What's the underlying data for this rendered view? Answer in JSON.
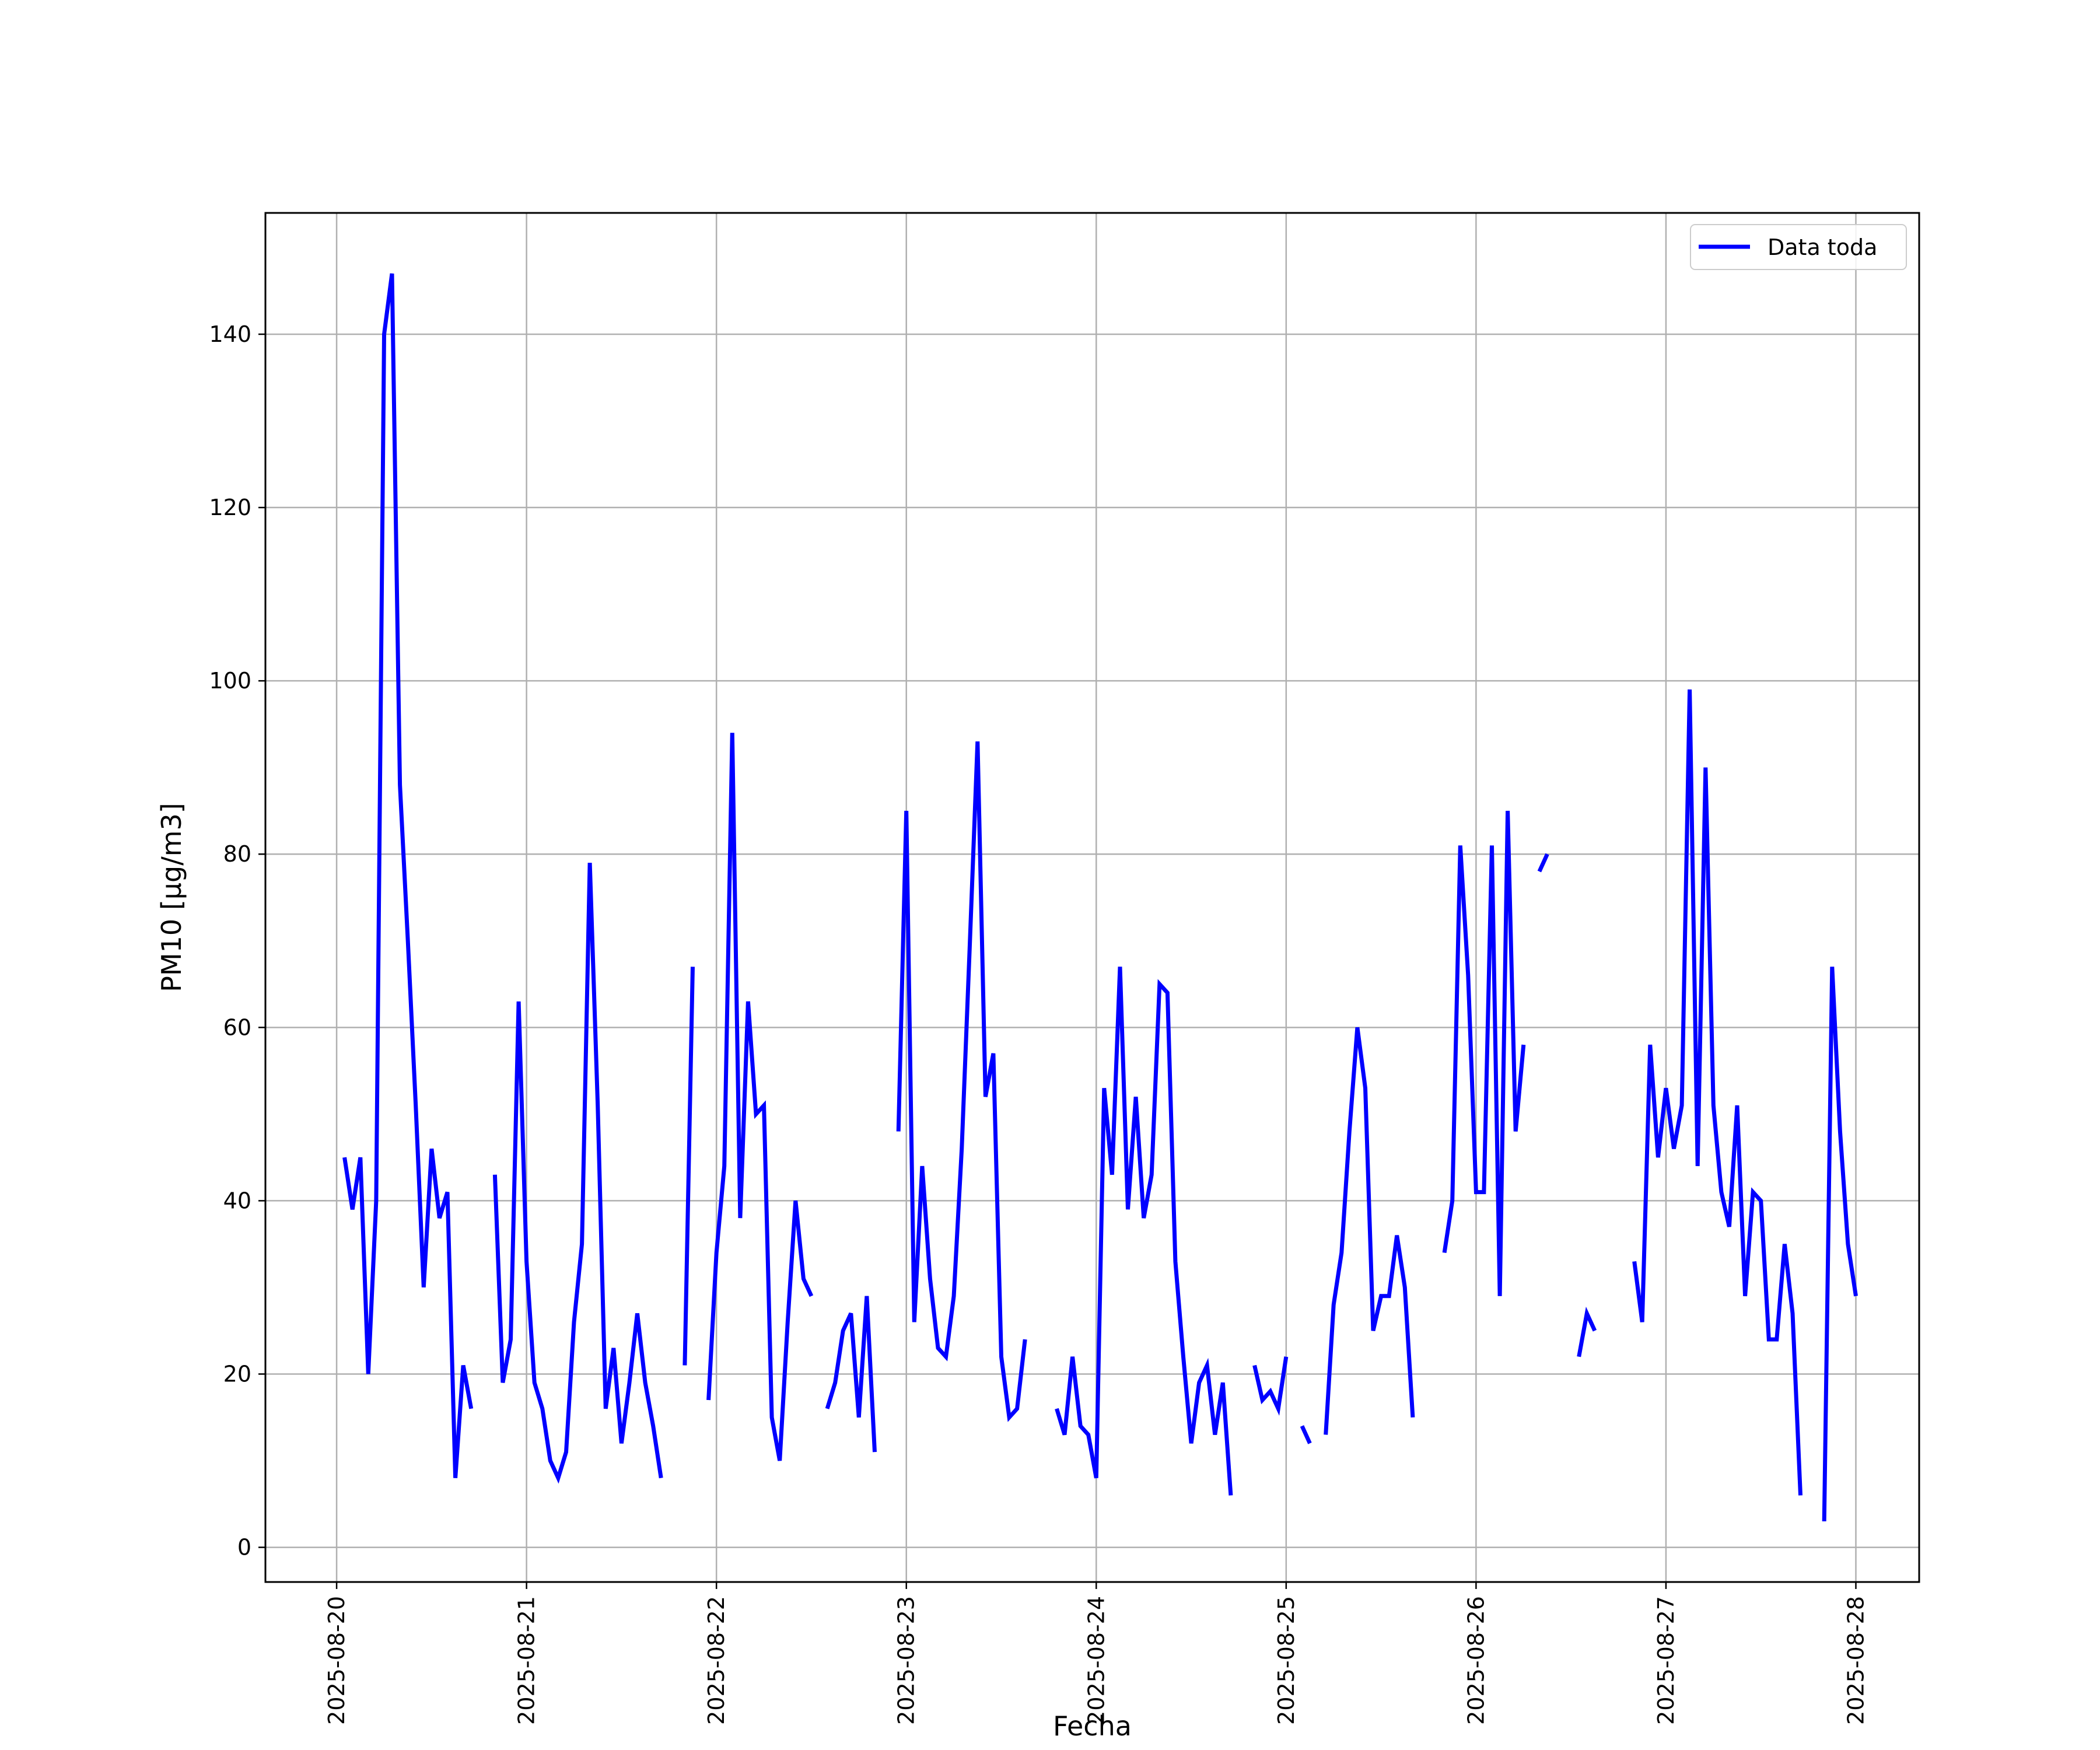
{
  "chart_data": {
    "type": "line",
    "xlabel": "Fecha",
    "ylabel": "PM10 [μg/m3]",
    "xlim": [
      "2025-08-19T15:00",
      "2025-08-28T08:00"
    ],
    "ylim": [
      -4,
      154
    ],
    "grid": true,
    "legend_position": "top-right",
    "x_ticks": [
      "2025-08-20",
      "2025-08-21",
      "2025-08-22",
      "2025-08-23",
      "2025-08-24",
      "2025-08-25",
      "2025-08-26",
      "2025-08-27",
      "2025-08-28"
    ],
    "y_ticks": [
      0,
      20,
      40,
      60,
      80,
      100,
      120,
      140
    ],
    "series": [
      {
        "name": "Data toda",
        "color": "#0000ff",
        "points": [
          [
            "2025-08-20T01:00",
            45
          ],
          [
            "2025-08-20T02:00",
            39
          ],
          [
            "2025-08-20T03:00",
            45
          ],
          [
            "2025-08-20T04:00",
            20
          ],
          [
            "2025-08-20T05:00",
            40
          ],
          [
            "2025-08-20T06:00",
            140
          ],
          [
            "2025-08-20T07:00",
            147
          ],
          [
            "2025-08-20T08:00",
            88
          ],
          [
            "2025-08-20T09:00",
            70
          ],
          [
            "2025-08-20T10:00",
            51
          ],
          [
            "2025-08-20T11:00",
            30
          ],
          [
            "2025-08-20T12:00",
            46
          ],
          [
            "2025-08-20T13:00",
            38
          ],
          [
            "2025-08-20T14:00",
            41
          ],
          [
            "2025-08-20T15:00",
            8
          ],
          [
            "2025-08-20T16:00",
            21
          ],
          [
            "2025-08-20T17:00",
            16
          ],
          [
            "2025-08-20T18:00",
            null
          ],
          [
            "2025-08-20T19:00",
            null
          ],
          [
            "2025-08-20T20:00",
            43
          ],
          [
            "2025-08-20T21:00",
            19
          ],
          [
            "2025-08-20T22:00",
            24
          ],
          [
            "2025-08-20T23:00",
            63
          ],
          [
            "2025-08-21T00:00",
            33
          ],
          [
            "2025-08-21T01:00",
            19
          ],
          [
            "2025-08-21T02:00",
            16
          ],
          [
            "2025-08-21T03:00",
            10
          ],
          [
            "2025-08-21T04:00",
            8
          ],
          [
            "2025-08-21T05:00",
            11
          ],
          [
            "2025-08-21T06:00",
            26
          ],
          [
            "2025-08-21T07:00",
            35
          ],
          [
            "2025-08-21T08:00",
            79
          ],
          [
            "2025-08-21T09:00",
            51
          ],
          [
            "2025-08-21T10:00",
            16
          ],
          [
            "2025-08-21T11:00",
            23
          ],
          [
            "2025-08-21T12:00",
            12
          ],
          [
            "2025-08-21T13:00",
            19
          ],
          [
            "2025-08-21T14:00",
            27
          ],
          [
            "2025-08-21T15:00",
            19
          ],
          [
            "2025-08-21T16:00",
            14
          ],
          [
            "2025-08-21T17:00",
            8
          ],
          [
            "2025-08-21T18:00",
            null
          ],
          [
            "2025-08-21T19:00",
            null
          ],
          [
            "2025-08-21T20:00",
            21
          ],
          [
            "2025-08-21T21:00",
            67
          ],
          [
            "2025-08-21T22:00",
            null
          ],
          [
            "2025-08-21T23:00",
            17
          ],
          [
            "2025-08-22T00:00",
            34
          ],
          [
            "2025-08-22T01:00",
            44
          ],
          [
            "2025-08-22T02:00",
            94
          ],
          [
            "2025-08-22T03:00",
            38
          ],
          [
            "2025-08-22T04:00",
            63
          ],
          [
            "2025-08-22T05:00",
            50
          ],
          [
            "2025-08-22T06:00",
            51
          ],
          [
            "2025-08-22T07:00",
            15
          ],
          [
            "2025-08-22T08:00",
            10
          ],
          [
            "2025-08-22T09:00",
            26
          ],
          [
            "2025-08-22T10:00",
            40
          ],
          [
            "2025-08-22T11:00",
            31
          ],
          [
            "2025-08-22T12:00",
            29
          ],
          [
            "2025-08-22T13:00",
            null
          ],
          [
            "2025-08-22T14:00",
            16
          ],
          [
            "2025-08-22T15:00",
            19
          ],
          [
            "2025-08-22T16:00",
            25
          ],
          [
            "2025-08-22T17:00",
            27
          ],
          [
            "2025-08-22T18:00",
            15
          ],
          [
            "2025-08-22T19:00",
            29
          ],
          [
            "2025-08-22T20:00",
            11
          ],
          [
            "2025-08-22T21:00",
            null
          ],
          [
            "2025-08-22T22:00",
            null
          ],
          [
            "2025-08-22T23:00",
            48
          ],
          [
            "2025-08-23T00:00",
            85
          ],
          [
            "2025-08-23T01:00",
            26
          ],
          [
            "2025-08-23T02:00",
            44
          ],
          [
            "2025-08-23T03:00",
            31
          ],
          [
            "2025-08-23T04:00",
            23
          ],
          [
            "2025-08-23T05:00",
            22
          ],
          [
            "2025-08-23T06:00",
            29
          ],
          [
            "2025-08-23T07:00",
            46
          ],
          [
            "2025-08-23T08:00",
            69
          ],
          [
            "2025-08-23T09:00",
            93
          ],
          [
            "2025-08-23T10:00",
            52
          ],
          [
            "2025-08-23T11:00",
            57
          ],
          [
            "2025-08-23T12:00",
            22
          ],
          [
            "2025-08-23T13:00",
            15
          ],
          [
            "2025-08-23T14:00",
            16
          ],
          [
            "2025-08-23T15:00",
            24
          ],
          [
            "2025-08-23T16:00",
            null
          ],
          [
            "2025-08-23T17:00",
            null
          ],
          [
            "2025-08-23T18:00",
            null
          ],
          [
            "2025-08-23T19:00",
            16
          ],
          [
            "2025-08-23T20:00",
            13
          ],
          [
            "2025-08-23T21:00",
            22
          ],
          [
            "2025-08-23T22:00",
            14
          ],
          [
            "2025-08-23T23:00",
            13
          ],
          [
            "2025-08-24T00:00",
            8
          ],
          [
            "2025-08-24T01:00",
            53
          ],
          [
            "2025-08-24T02:00",
            43
          ],
          [
            "2025-08-24T03:00",
            67
          ],
          [
            "2025-08-24T04:00",
            39
          ],
          [
            "2025-08-24T05:00",
            52
          ],
          [
            "2025-08-24T06:00",
            38
          ],
          [
            "2025-08-24T07:00",
            43
          ],
          [
            "2025-08-24T08:00",
            65
          ],
          [
            "2025-08-24T09:00",
            64
          ],
          [
            "2025-08-24T10:00",
            33
          ],
          [
            "2025-08-24T11:00",
            22
          ],
          [
            "2025-08-24T12:00",
            12
          ],
          [
            "2025-08-24T13:00",
            19
          ],
          [
            "2025-08-24T14:00",
            21
          ],
          [
            "2025-08-24T15:00",
            13
          ],
          [
            "2025-08-24T16:00",
            19
          ],
          [
            "2025-08-24T17:00",
            6
          ],
          [
            "2025-08-24T18:00",
            null
          ],
          [
            "2025-08-24T19:00",
            null
          ],
          [
            "2025-08-24T20:00",
            21
          ],
          [
            "2025-08-24T21:00",
            17
          ],
          [
            "2025-08-24T22:00",
            18
          ],
          [
            "2025-08-24T23:00",
            16
          ],
          [
            "2025-08-25T00:00",
            22
          ],
          [
            "2025-08-25T01:00",
            null
          ],
          [
            "2025-08-25T02:00",
            14
          ],
          [
            "2025-08-25T03:00",
            12
          ],
          [
            "2025-08-25T04:00",
            null
          ],
          [
            "2025-08-25T05:00",
            13
          ],
          [
            "2025-08-25T06:00",
            28
          ],
          [
            "2025-08-25T07:00",
            34
          ],
          [
            "2025-08-25T08:00",
            48
          ],
          [
            "2025-08-25T09:00",
            60
          ],
          [
            "2025-08-25T10:00",
            53
          ],
          [
            "2025-08-25T11:00",
            25
          ],
          [
            "2025-08-25T12:00",
            29
          ],
          [
            "2025-08-25T13:00",
            29
          ],
          [
            "2025-08-25T14:00",
            36
          ],
          [
            "2025-08-25T15:00",
            30
          ],
          [
            "2025-08-25T16:00",
            15
          ],
          [
            "2025-08-25T17:00",
            null
          ],
          [
            "2025-08-25T18:00",
            null
          ],
          [
            "2025-08-25T19:00",
            null
          ],
          [
            "2025-08-25T20:00",
            34
          ],
          [
            "2025-08-25T21:00",
            40
          ],
          [
            "2025-08-25T22:00",
            81
          ],
          [
            "2025-08-25T23:00",
            66
          ],
          [
            "2025-08-26T00:00",
            41
          ],
          [
            "2025-08-26T01:00",
            41
          ],
          [
            "2025-08-26T02:00",
            81
          ],
          [
            "2025-08-26T03:00",
            29
          ],
          [
            "2025-08-26T04:00",
            85
          ],
          [
            "2025-08-26T05:00",
            48
          ],
          [
            "2025-08-26T06:00",
            58
          ],
          [
            "2025-08-26T07:00",
            null
          ],
          [
            "2025-08-26T08:00",
            78
          ],
          [
            "2025-08-26T09:00",
            80
          ],
          [
            "2025-08-26T10:00",
            null
          ],
          [
            "2025-08-26T11:00",
            null
          ],
          [
            "2025-08-26T12:00",
            null
          ],
          [
            "2025-08-26T13:00",
            22
          ],
          [
            "2025-08-26T14:00",
            27
          ],
          [
            "2025-08-26T15:00",
            25
          ],
          [
            "2025-08-26T16:00",
            null
          ],
          [
            "2025-08-26T17:00",
            null
          ],
          [
            "2025-08-26T18:00",
            null
          ],
          [
            "2025-08-26T19:00",
            null
          ],
          [
            "2025-08-26T20:00",
            33
          ],
          [
            "2025-08-26T21:00",
            26
          ],
          [
            "2025-08-26T22:00",
            58
          ],
          [
            "2025-08-26T23:00",
            45
          ],
          [
            "2025-08-27T00:00",
            53
          ],
          [
            "2025-08-27T01:00",
            46
          ],
          [
            "2025-08-27T02:00",
            51
          ],
          [
            "2025-08-27T03:00",
            99
          ],
          [
            "2025-08-27T04:00",
            44
          ],
          [
            "2025-08-27T05:00",
            90
          ],
          [
            "2025-08-27T06:00",
            51
          ],
          [
            "2025-08-27T07:00",
            41
          ],
          [
            "2025-08-27T08:00",
            37
          ],
          [
            "2025-08-27T09:00",
            51
          ],
          [
            "2025-08-27T10:00",
            29
          ],
          [
            "2025-08-27T11:00",
            41
          ],
          [
            "2025-08-27T12:00",
            40
          ],
          [
            "2025-08-27T13:00",
            24
          ],
          [
            "2025-08-27T14:00",
            24
          ],
          [
            "2025-08-27T15:00",
            35
          ],
          [
            "2025-08-27T16:00",
            27
          ],
          [
            "2025-08-27T17:00",
            6
          ],
          [
            "2025-08-27T18:00",
            null
          ],
          [
            "2025-08-27T19:00",
            null
          ],
          [
            "2025-08-27T20:00",
            3
          ],
          [
            "2025-08-27T21:00",
            67
          ],
          [
            "2025-08-27T22:00",
            48
          ],
          [
            "2025-08-27T23:00",
            35
          ],
          [
            "2025-08-28T00:00",
            29
          ]
        ]
      }
    ]
  }
}
